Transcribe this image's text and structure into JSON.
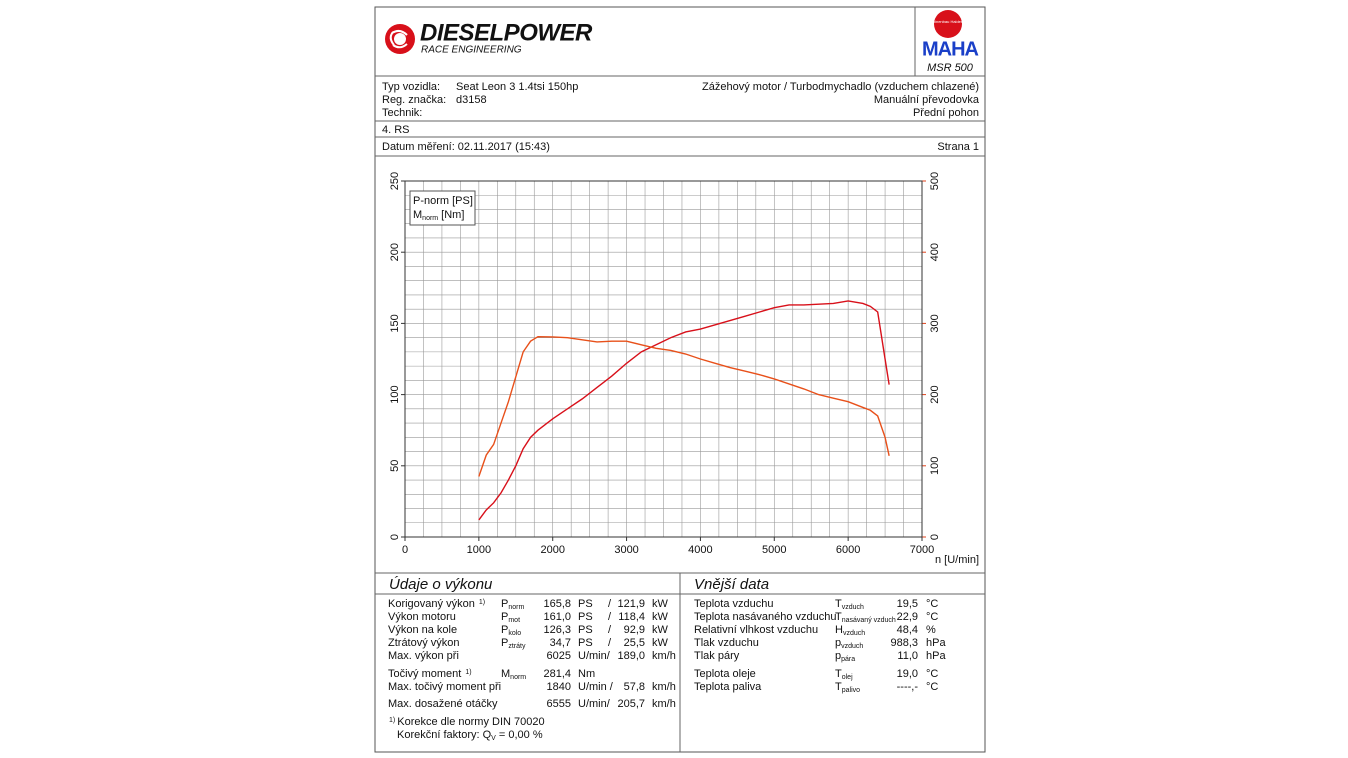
{
  "header": {
    "logo": "DIESELPOWER",
    "logo_sub": "RACE ENGINEERING",
    "maha_ring": "Maschinenbau Haldenwang",
    "maha": "MAHA",
    "device": "MSR 500"
  },
  "info": {
    "left": [
      {
        "label": "Typ vozidla:",
        "value": "Seat Leon 3 1.4tsi 150hp"
      },
      {
        "label": "Reg. značka:",
        "value": "d3158"
      },
      {
        "label": "Technik:"
      }
    ],
    "right": [
      "Zážehový motor / Turbodmychadlo (vzduchem chlazené)",
      "Manuální převodovka",
      "Přední pohon"
    ],
    "run": "4. RS",
    "date": "Datum měření: 02.11.2017 (15:43)",
    "page": "Strana 1"
  },
  "chart_data": {
    "type": "line",
    "xlabel": "n [U/min]",
    "xlim": [
      0,
      7000
    ],
    "xticks": [
      0,
      1000,
      2000,
      3000,
      4000,
      5000,
      6000,
      7000
    ],
    "ylim": [
      0,
      250
    ],
    "yticks": [
      0,
      50,
      100,
      150,
      200,
      250
    ],
    "y2lim": [
      0,
      500
    ],
    "y2ticks": [
      0,
      100,
      200,
      300,
      400,
      500
    ],
    "y2color": "#e0401a",
    "grid": true,
    "grid_minor": {
      "x": 250,
      "y": 10
    },
    "legend": "upper left",
    "x": [
      1000,
      1100,
      1200,
      1300,
      1400,
      1500,
      1600,
      1700,
      1800,
      2000,
      2200,
      2400,
      2600,
      2800,
      3000,
      3200,
      3400,
      3600,
      3800,
      4000,
      4200,
      4400,
      4600,
      4800,
      5000,
      5200,
      5400,
      5600,
      5800,
      6000,
      6200,
      6300,
      6400,
      6500,
      6555
    ],
    "series": [
      {
        "name": "P-norm [PS]",
        "color": "#d8101a",
        "values": [
          12,
          19,
          24,
          31,
          40,
          50,
          62,
          70,
          75,
          83,
          90,
          97,
          105,
          113,
          122,
          130,
          135,
          140,
          144,
          146,
          149,
          152,
          155,
          158,
          161,
          163,
          163,
          163.5,
          164,
          165.8,
          164,
          162,
          158,
          125,
          107
        ]
      },
      {
        "name": "M",
        "name_sub": "norm",
        "name_suffix": " [Nm]",
        "color": "#e8501a",
        "axis": "y2",
        "values": [
          85,
          115,
          130,
          160,
          190,
          225,
          260,
          275,
          281.4,
          281,
          280,
          277,
          274,
          275,
          275,
          270,
          265,
          262,
          257,
          250,
          244,
          238,
          233,
          228,
          222,
          215,
          208,
          200,
          195,
          190,
          182,
          178,
          170,
          140,
          114
        ]
      }
    ]
  },
  "performance": {
    "title": "Údaje o výkonu",
    "rows": [
      {
        "label": "Korigovaný výkon",
        "note": "1)",
        "symbol": "P",
        "sub": "norm",
        "value": "165,8",
        "unit": "PS",
        "sep": "/",
        "value2": "121,9",
        "unit2": "kW",
        "color": "#d8101a"
      },
      {
        "label": "Výkon motoru",
        "symbol": "P",
        "sub": "mot",
        "value": "161,0",
        "unit": "PS",
        "sep": "/",
        "value2": "118,4",
        "unit2": "kW",
        "color": "#d8101a"
      },
      {
        "label": "Výkon na kole",
        "symbol": "P",
        "sub": "kolo",
        "value": "126,3",
        "unit": "PS",
        "sep": "/",
        "value2": "92,9",
        "unit2": "kW",
        "color": "#1a2fc8"
      },
      {
        "label": "Ztrátový výkon",
        "symbol": "P",
        "sub": "ztráty",
        "value": "34,7",
        "unit": "PS",
        "sep": "/",
        "value2": "25,5",
        "unit2": "kW",
        "color": "#1a8a1a"
      },
      {
        "label": "Max. výkon při",
        "value": "6025",
        "unit": "U/min/",
        "value2": "189,0",
        "unit2": "km/h",
        "color": "#111111",
        "value_color": "#888888"
      },
      {
        "label": "Točivý moment",
        "note": "1)",
        "symbol": "M",
        "sub": "norm",
        "value": "281,4",
        "unit": "Nm",
        "color": "#e8501a"
      },
      {
        "label": "Max. točivý moment při",
        "value": "1840",
        "unit": "U/min /",
        "value2": "57,8",
        "unit2": "km/h",
        "color": "#111111",
        "value_color": "#888888"
      },
      {
        "label": "Max. dosažené otáčky",
        "value": "6555",
        "unit": "U/min/",
        "value2": "205,7",
        "unit2": "km/h",
        "color": "#111111",
        "value_color": "#888888"
      }
    ],
    "footnote_mark": "1)",
    "footnote": "Korekce dle normy DIN 70020",
    "factor": {
      "text": "Korekční faktory: Q",
      "sub": "V",
      "rest": " =   0,00 %"
    }
  },
  "ambient": {
    "title": "Vnější data",
    "rows": [
      {
        "label": "Teplota vzduchu",
        "symbol": "T",
        "sub": "vzduch",
        "value": "19,5",
        "unit": "°C"
      },
      {
        "label": "Teplota nasávaného vzduchu",
        "symbol": "T",
        "sub": "nasávaný vzduch",
        "value": "22,9",
        "unit": "°C"
      },
      {
        "label": "Relativní vlhkost vzduchu",
        "symbol": "H",
        "sub": "vzduch",
        "value": "48,4",
        "unit": "%"
      },
      {
        "label": "Tlak vzduchu",
        "symbol": "p",
        "sub": "vzduch",
        "value": "988,3",
        "unit": "hPa"
      },
      {
        "label": "Tlak páry",
        "symbol": "p",
        "sub": "pára",
        "value": "11,0",
        "unit": "hPa"
      },
      {
        "label": "Teplota oleje",
        "symbol": "T",
        "sub": "olej",
        "value": "19,0",
        "unit": "°C"
      },
      {
        "label": "Teplota paliva",
        "symbol": "T",
        "sub": "palivo",
        "value": "----,-",
        "unit": "°C"
      }
    ]
  }
}
